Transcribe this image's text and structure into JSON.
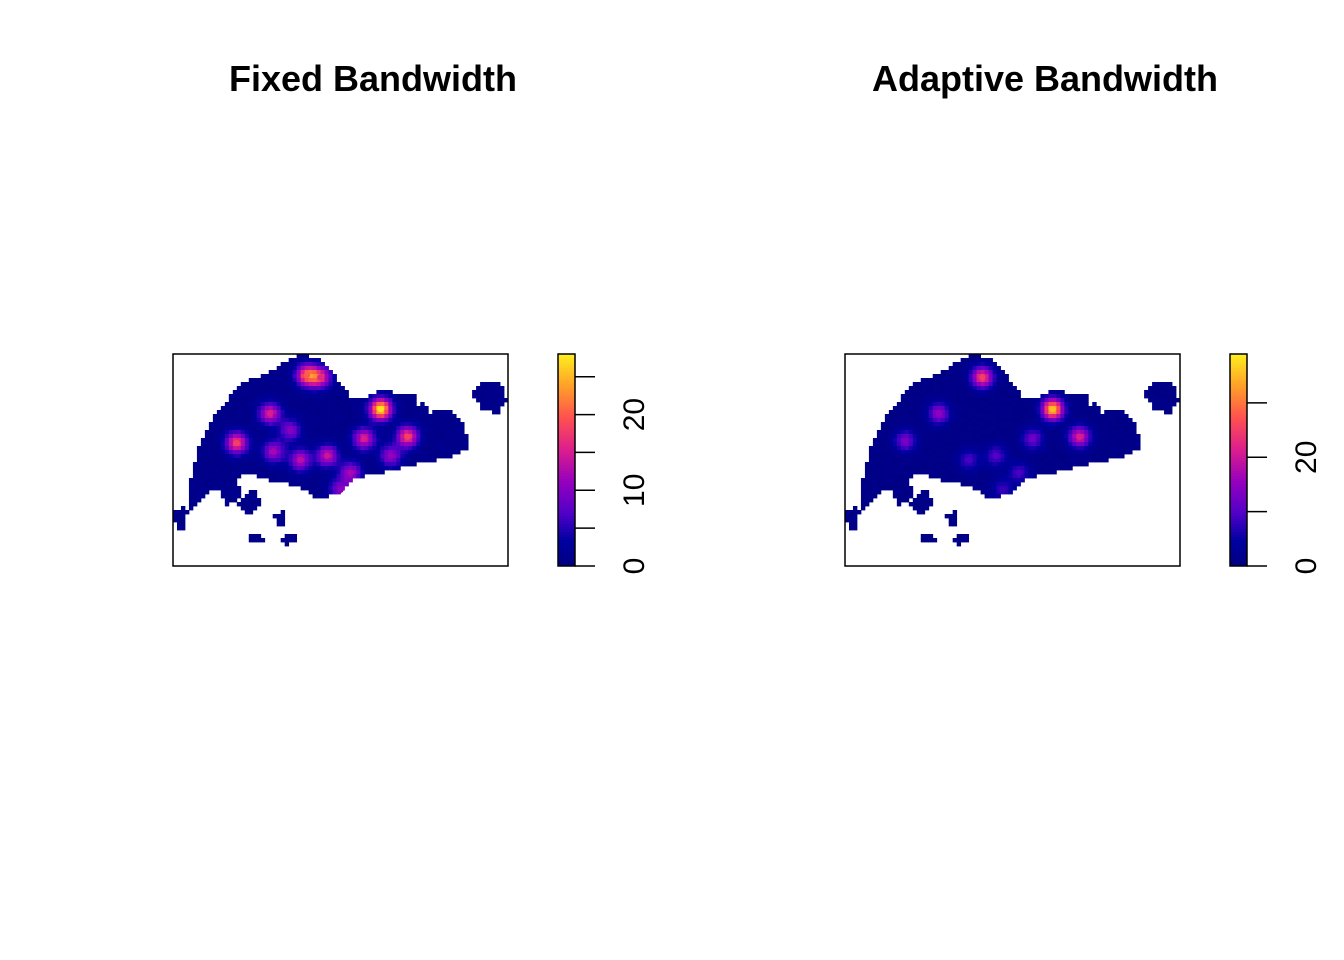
{
  "chart_data": [
    {
      "type": "heatmap",
      "title": "Fixed Bandwidth",
      "legend": {
        "range": [
          0,
          28
        ],
        "ticks": [
          0,
          5,
          10,
          15,
          20,
          25
        ],
        "tick_labels": [
          "0",
          "",
          "10",
          "",
          "20",
          ""
        ]
      },
      "hotspots": [
        {
          "x": 0.4,
          "y": 0.1,
          "v": 19
        },
        {
          "x": 0.44,
          "y": 0.11,
          "v": 15
        },
        {
          "x": 0.29,
          "y": 0.28,
          "v": 14
        },
        {
          "x": 0.19,
          "y": 0.42,
          "v": 17
        },
        {
          "x": 0.62,
          "y": 0.26,
          "v": 26
        },
        {
          "x": 0.57,
          "y": 0.4,
          "v": 14
        },
        {
          "x": 0.7,
          "y": 0.39,
          "v": 17
        },
        {
          "x": 0.46,
          "y": 0.48,
          "v": 13
        },
        {
          "x": 0.38,
          "y": 0.5,
          "v": 12
        },
        {
          "x": 0.53,
          "y": 0.56,
          "v": 11
        },
        {
          "x": 0.3,
          "y": 0.46,
          "v": 11
        },
        {
          "x": 0.5,
          "y": 0.64,
          "v": 9
        },
        {
          "x": 0.65,
          "y": 0.48,
          "v": 10
        },
        {
          "x": 0.35,
          "y": 0.36,
          "v": 9
        }
      ]
    },
    {
      "type": "heatmap",
      "title": "Adaptive Bandwidth",
      "legend": {
        "range": [
          0,
          39
        ],
        "ticks": [
          0,
          10,
          20,
          30
        ],
        "tick_labels": [
          "0",
          "",
          "20",
          ""
        ]
      },
      "hotspots": [
        {
          "x": 0.41,
          "y": 0.11,
          "v": 24
        },
        {
          "x": 0.28,
          "y": 0.28,
          "v": 14
        },
        {
          "x": 0.18,
          "y": 0.41,
          "v": 12
        },
        {
          "x": 0.62,
          "y": 0.26,
          "v": 34
        },
        {
          "x": 0.7,
          "y": 0.39,
          "v": 20
        },
        {
          "x": 0.56,
          "y": 0.4,
          "v": 11
        },
        {
          "x": 0.45,
          "y": 0.48,
          "v": 9
        },
        {
          "x": 0.37,
          "y": 0.5,
          "v": 8
        },
        {
          "x": 0.52,
          "y": 0.56,
          "v": 8
        },
        {
          "x": 0.47,
          "y": 0.64,
          "v": 7
        }
      ]
    }
  ]
}
